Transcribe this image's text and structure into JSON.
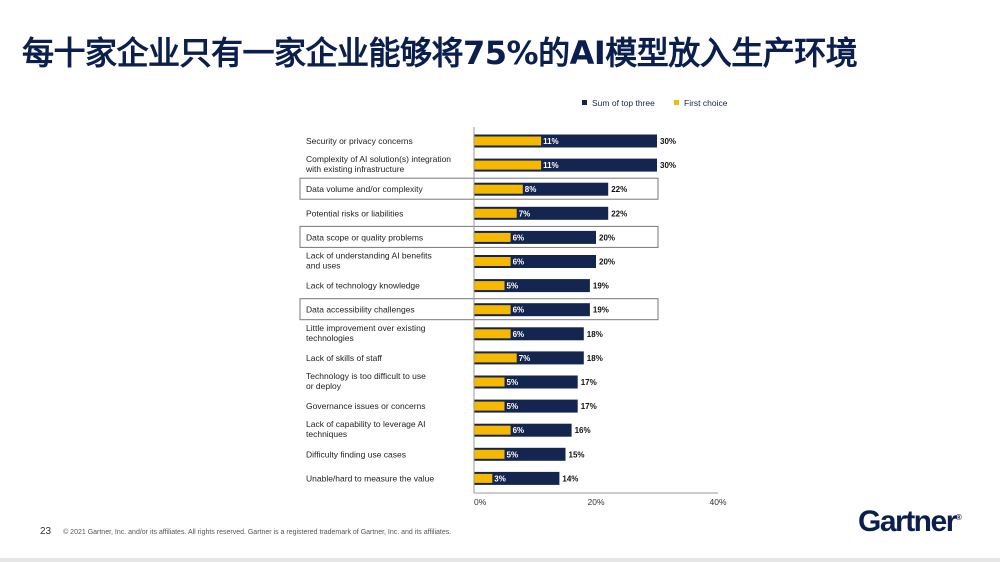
{
  "title": "每十家企业只有一家企业能够将75%的AI模型放入生产环境",
  "footer": {
    "page_number": "23",
    "copyright": "© 2021 Gartner, Inc. and/or its affiliates. All rights reserved. Gartner is a registered trademark of Gartner, Inc. and its affiliates."
  },
  "logo": "Gartner",
  "chart_data": {
    "type": "bar",
    "orientation": "horizontal",
    "title": "",
    "xlim": [
      0,
      40
    ],
    "xticks": [
      "0%",
      "20%",
      "40%"
    ],
    "grid": false,
    "legend_placement": "top-right",
    "colors": {
      "Sum of top three": "#14254f",
      "First choice": "#f7b900"
    },
    "categories": [
      [
        "Security or privacy concerns"
      ],
      [
        "Complexity of AI solution(s) integration",
        "with existing infrastructure"
      ],
      [
        "Data volume and/or complexity"
      ],
      [
        "Potential risks or liabilities"
      ],
      [
        "Data scope or quality problems"
      ],
      [
        "Lack of understanding AI benefits",
        "and uses"
      ],
      [
        "Lack of technology knowledge"
      ],
      [
        "Data accessibility challenges"
      ],
      [
        "Little improvement over existing",
        "technologies"
      ],
      [
        "Lack of skills of staff"
      ],
      [
        "Technology is too difficult to use",
        "or deploy"
      ],
      [
        "Governance issues or concerns"
      ],
      [
        "Lack of capability to leverage AI",
        "techniques"
      ],
      [
        "Difficulty finding use cases"
      ],
      [
        "Unable/hard to measure the value"
      ]
    ],
    "highlighted": [
      2,
      4,
      7
    ],
    "series": [
      {
        "name": "Sum of top three",
        "values": [
          30,
          30,
          22,
          22,
          20,
          20,
          19,
          19,
          18,
          18,
          17,
          17,
          16,
          15,
          14
        ]
      },
      {
        "name": "First choice",
        "values": [
          11,
          11,
          8,
          7,
          6,
          6,
          5,
          6,
          6,
          7,
          5,
          5,
          6,
          5,
          3
        ]
      }
    ]
  }
}
